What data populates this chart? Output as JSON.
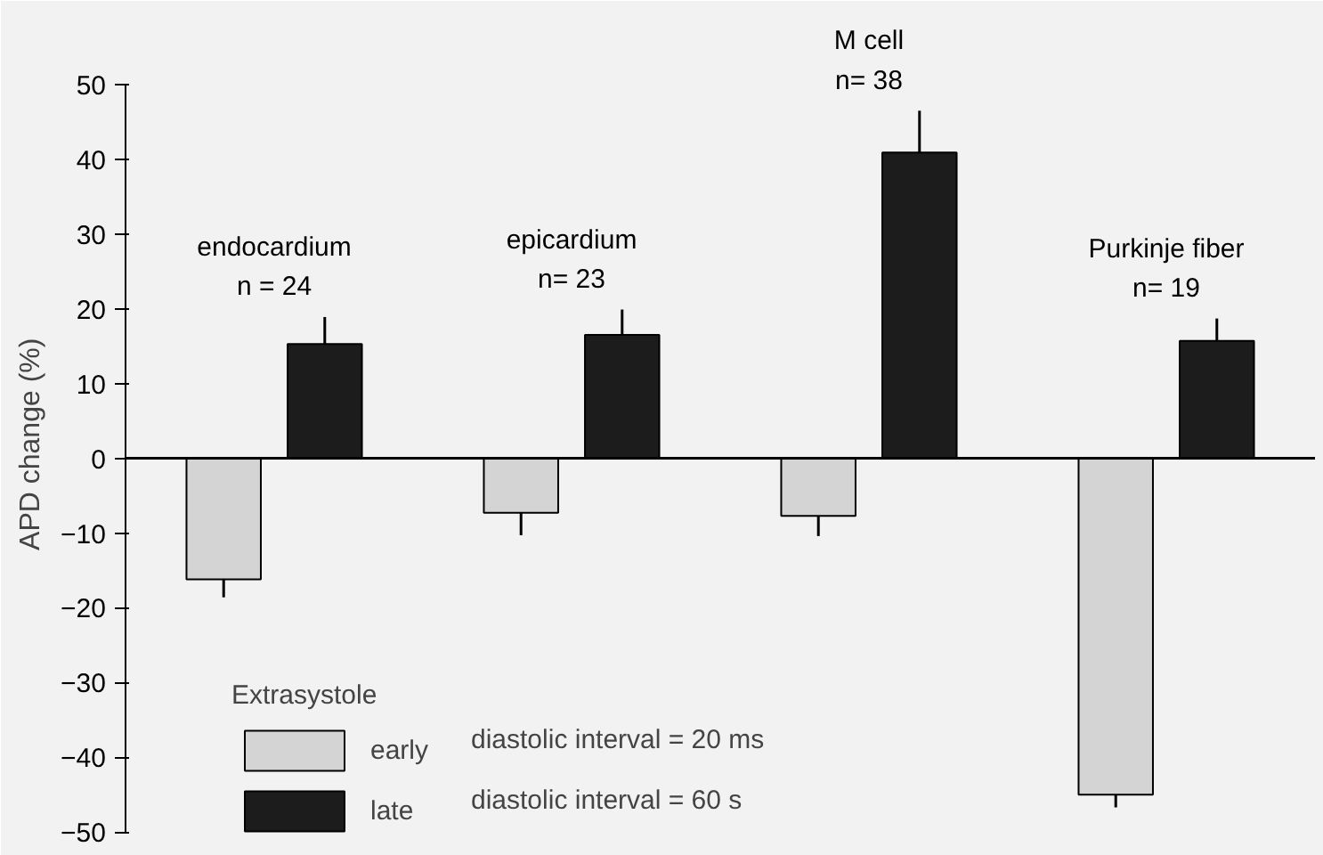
{
  "chart_data": {
    "type": "bar",
    "categories": [
      "endocardium\nn = 24",
      "epicardium\nn= 23",
      "M cell\nn= 38",
      "Purkinje fiber\nn= 19"
    ],
    "series": [
      {
        "name": "early",
        "color": "#d4d4d4",
        "values": [
          -16.2,
          -7.3,
          -7.7,
          -45
        ],
        "errors": [
          [
            -18.6,
            -16.2
          ],
          [
            -10.3,
            -7.3
          ],
          [
            -10.4,
            -7.7
          ],
          [
            -46.7,
            -45
          ]
        ]
      },
      {
        "name": "late",
        "color": "#1c1c1c",
        "values": [
          15.3,
          16.5,
          40.9,
          15.7
        ],
        "errors": [
          [
            15.3,
            18.9
          ],
          [
            16.5,
            19.9
          ],
          [
            40.9,
            46.5
          ],
          [
            15.7,
            18.7
          ]
        ]
      }
    ],
    "ylabel": "APD change     (%)",
    "ylim": [
      -50,
      50
    ],
    "yticks": [
      -50,
      -40,
      -30,
      -20,
      -10,
      0,
      10,
      20,
      30,
      40,
      50
    ],
    "ref_lines": [
      {
        "axis": "y",
        "value": 0
      }
    ],
    "legend": "bottom left",
    "legend_title": "Extrasystole",
    "annotations": [
      "diastolic interval = 20 ms",
      "diastolic interval = 60 s"
    ],
    "tick_labels": "y",
    "grid": false
  }
}
